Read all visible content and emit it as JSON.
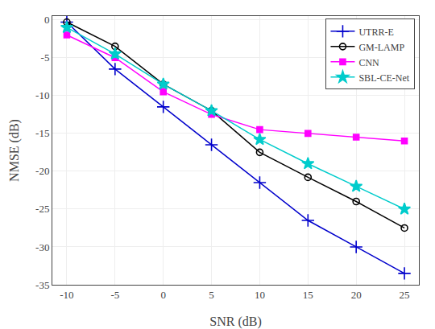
{
  "chart_data": {
    "type": "line",
    "xlabel": "SNR (dB)",
    "ylabel": "NMSE (dB)",
    "x": [
      -10,
      -5,
      0,
      5,
      10,
      15,
      20,
      25
    ],
    "series": [
      {
        "name": "UTRR-E",
        "color": "#0000CC",
        "marker": "plus",
        "values": [
          -0.3,
          -6.5,
          -11.5,
          -16.5,
          -21.5,
          -26.5,
          -30.0,
          -33.5
        ]
      },
      {
        "name": "GM-LAMP",
        "color": "#000000",
        "marker": "circle-open",
        "values": [
          -0.3,
          -3.5,
          -8.5,
          -12.0,
          -17.5,
          -20.8,
          -24.0,
          -27.5
        ]
      },
      {
        "name": "CNN",
        "color": "#FF00FF",
        "marker": "square",
        "values": [
          -2.0,
          -5.0,
          -9.5,
          -12.5,
          -14.5,
          -15.0,
          -15.5,
          -16.0
        ]
      },
      {
        "name": "SBL-CE-Net",
        "color": "#00CCCC",
        "marker": "star",
        "values": [
          -1.0,
          -4.5,
          -8.5,
          -12.0,
          -15.8,
          -19.0,
          -22.0,
          -25.0
        ]
      }
    ],
    "xlim": [
      -11.5,
      26.5
    ],
    "ylim": [
      -35,
      0.5
    ],
    "xticks": [
      -10,
      -5,
      0,
      5,
      10,
      15,
      20,
      25
    ],
    "yticks": [
      0,
      -5,
      -10,
      -15,
      -20,
      -25,
      -30,
      -35
    ],
    "grid": true,
    "legend": "upper right"
  }
}
